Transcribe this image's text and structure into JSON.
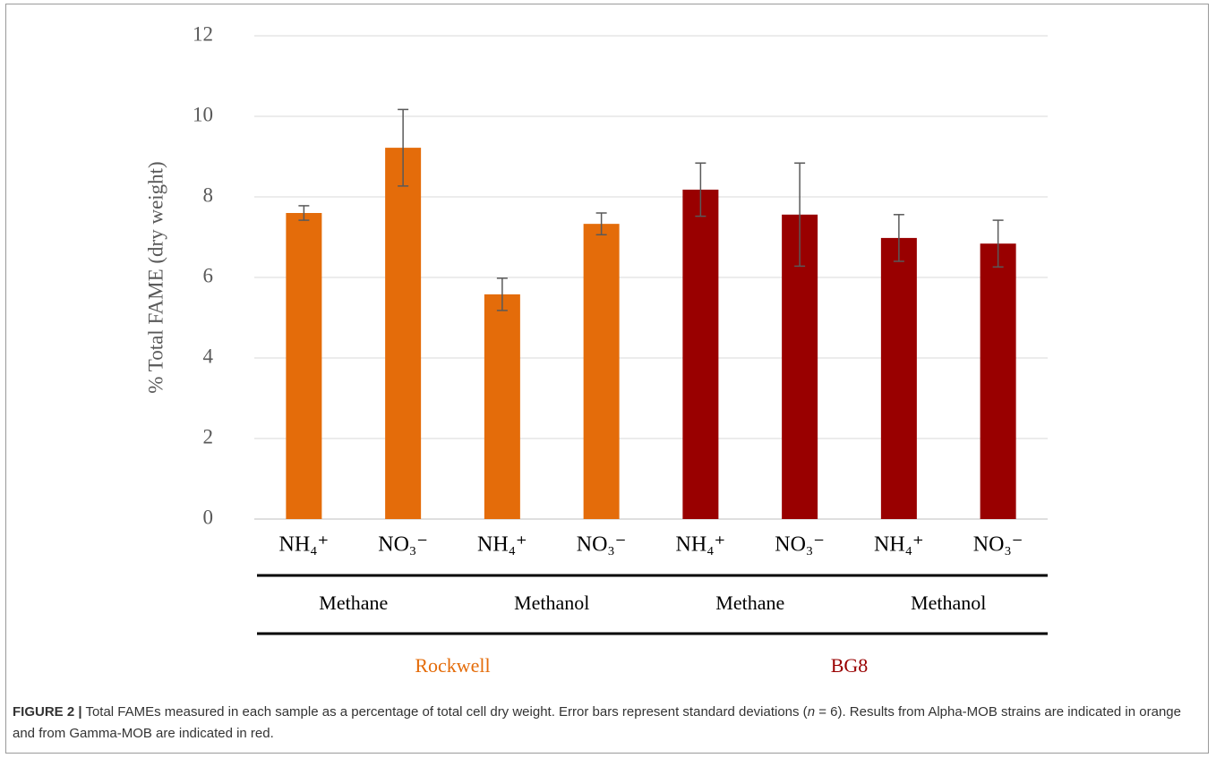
{
  "chart_data": {
    "type": "bar",
    "y_label": "% Total FAME (dry weight)",
    "categories": [
      "NH₄⁺",
      "NO₃⁻",
      "NH₄⁺",
      "NO₃⁻",
      "NH₄⁺",
      "NO₃⁻",
      "NH₄⁺",
      "NO₃⁻"
    ],
    "values": [
      7.6,
      9.22,
      5.58,
      7.33,
      8.18,
      7.56,
      6.98,
      6.84
    ],
    "errors": [
      0.18,
      0.95,
      0.4,
      0.27,
      0.66,
      1.28,
      0.58,
      0.58
    ],
    "substrates": [
      "Methane",
      "Methanol",
      "Methane",
      "Methanol"
    ],
    "strains": [
      {
        "name": "Rockwell",
        "color": "#e46c0a"
      },
      {
        "name": "BG8",
        "color": "#990000"
      }
    ],
    "ylim": [
      0,
      12
    ],
    "yticks": [
      0,
      2,
      4,
      6,
      8,
      10,
      12
    ],
    "grid": true
  },
  "caption": {
    "label": "FIGURE 2 |",
    "text_before": " Total FAMEs measured in each sample as a percentage of total cell dry weight. Error bars represent standard deviations (",
    "italic": "n",
    "text_after": " = 6). Results from Alpha-MOB strains are indicated in orange and from Gamma-MOB are indicated in red."
  }
}
